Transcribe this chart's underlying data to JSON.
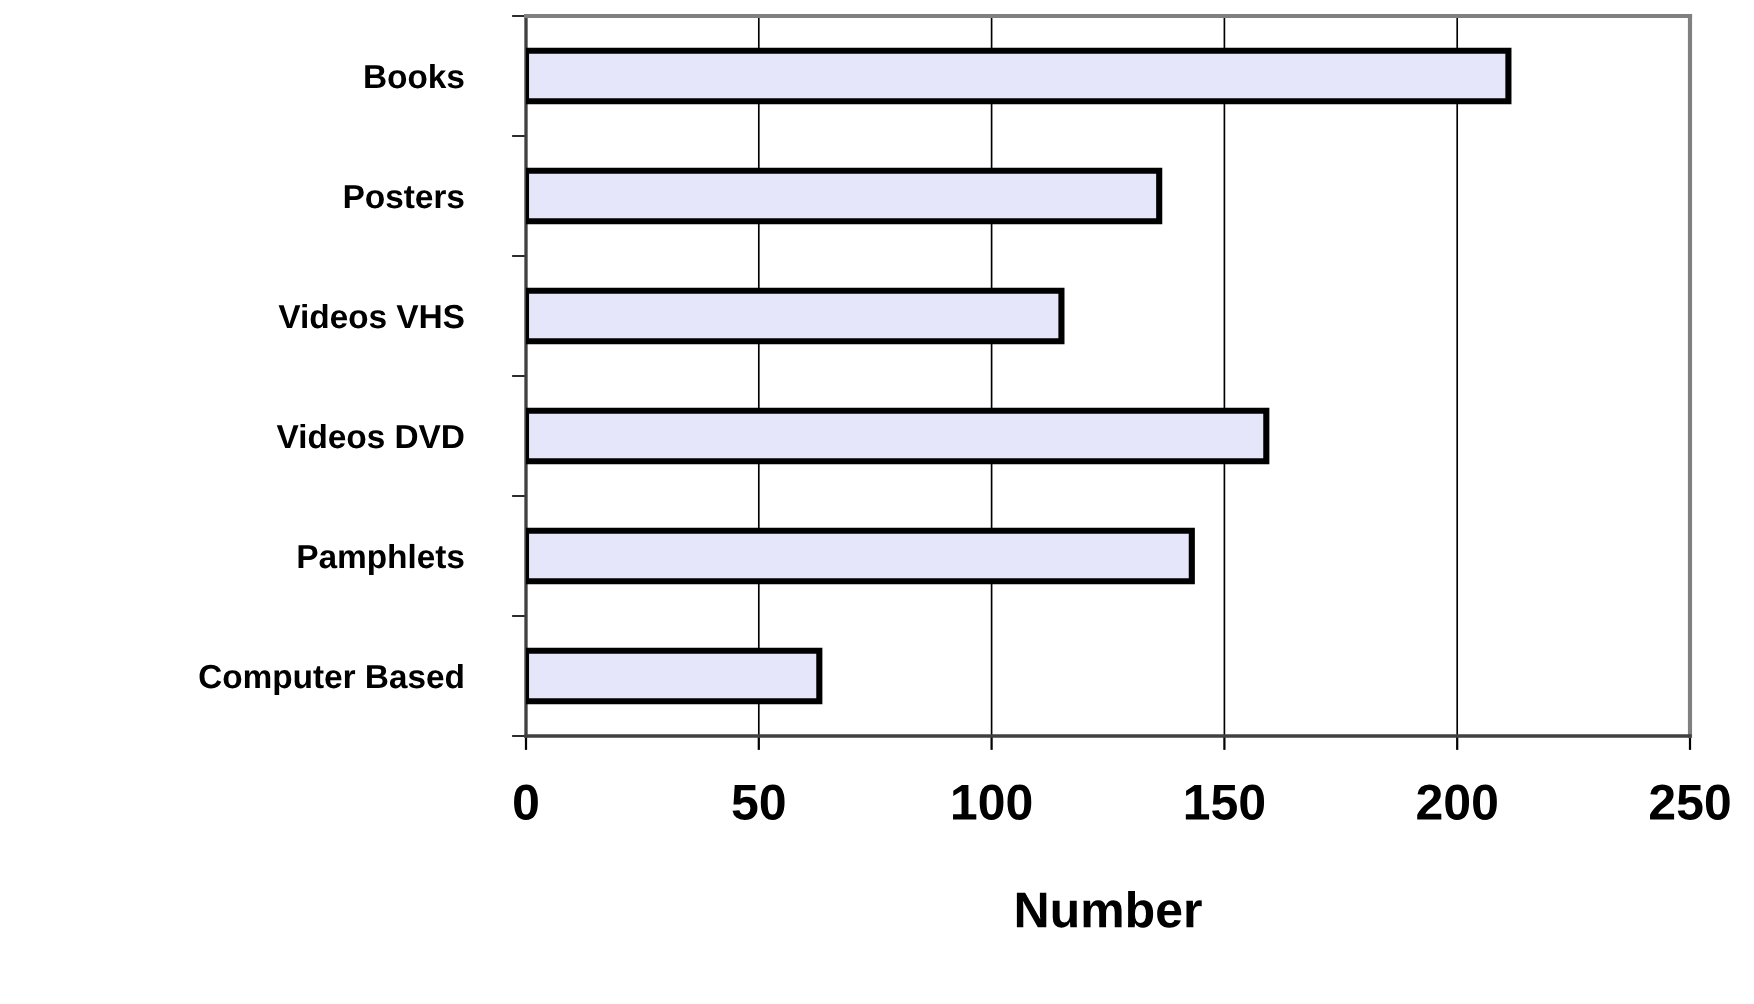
{
  "chart_data": {
    "type": "bar",
    "orientation": "horizontal",
    "xlabel": "Number",
    "categories": [
      "Books",
      "Posters",
      "Videos VHS",
      "Videos DVD",
      "Pamphlets",
      "Computer Based"
    ],
    "values": [
      211,
      136,
      115,
      159,
      143,
      63
    ],
    "color": "#e6e6fa",
    "xlim": [
      0,
      250
    ],
    "xticks": [
      0,
      50,
      100,
      150,
      200,
      250
    ],
    "grid": "x",
    "legend": false
  }
}
